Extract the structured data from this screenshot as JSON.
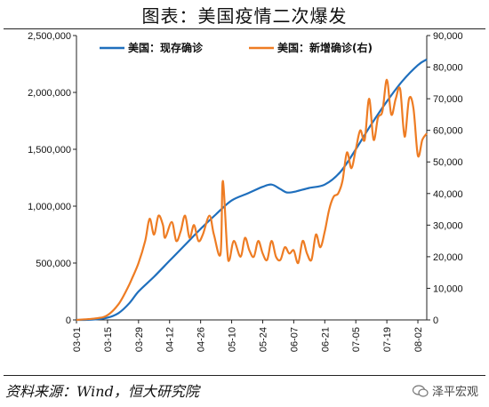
{
  "title": "图表：美国疫情二次爆发",
  "source": "资料来源：Wind，恒大研究院",
  "watermark": "泽平宏观",
  "colors": {
    "confirmed": "#1f6fbd",
    "new_cases": "#ee7c23"
  },
  "chart_data": {
    "type": "line",
    "x_ticks": [
      "03-01",
      "03-15",
      "03-29",
      "04-12",
      "04-26",
      "05-10",
      "05-24",
      "06-07",
      "06-21",
      "07-05",
      "07-19",
      "08-02"
    ],
    "x_start_label": "03-01",
    "series": [
      {
        "name": "美国：现存确诊",
        "axis": "left",
        "x": [
          "03-01",
          "03-08",
          "03-15",
          "03-20",
          "03-25",
          "03-29",
          "04-05",
          "04-12",
          "04-19",
          "04-26",
          "05-03",
          "05-10",
          "05-17",
          "05-24",
          "05-28",
          "06-01",
          "06-04",
          "06-08",
          "06-14",
          "06-21",
          "06-28",
          "07-05",
          "07-12",
          "07-19",
          "07-26",
          "08-02",
          "08-06"
        ],
        "values": [
          0,
          2000,
          20000,
          60000,
          150000,
          250000,
          380000,
          520000,
          660000,
          800000,
          930000,
          1050000,
          1110000,
          1170000,
          1190000,
          1150000,
          1120000,
          1130000,
          1160000,
          1190000,
          1300000,
          1500000,
          1720000,
          1920000,
          2100000,
          2240000,
          2290000
        ]
      },
      {
        "name": "美国：新增确诊(右)",
        "axis": "right",
        "x": [
          "03-01",
          "03-10",
          "03-15",
          "03-20",
          "03-24",
          "03-26",
          "03-29",
          "04-01",
          "04-03",
          "04-05",
          "04-07",
          "04-09",
          "04-10",
          "04-13",
          "04-15",
          "04-17",
          "04-19",
          "04-21",
          "04-23",
          "04-25",
          "04-27",
          "04-30",
          "05-02",
          "05-05",
          "05-06",
          "05-08",
          "05-09",
          "05-11",
          "05-14",
          "05-16",
          "05-18",
          "05-20",
          "05-22",
          "05-24",
          "05-26",
          "05-28",
          "05-30",
          "06-01",
          "06-03",
          "06-05",
          "06-07",
          "06-09",
          "06-11",
          "06-13",
          "06-15",
          "06-17",
          "06-19",
          "06-21",
          "06-23",
          "06-25",
          "06-27",
          "06-29",
          "07-01",
          "07-03",
          "07-05",
          "07-07",
          "07-09",
          "07-11",
          "07-13",
          "07-15",
          "07-17",
          "07-19",
          "07-21",
          "07-23",
          "07-25",
          "07-27",
          "07-29",
          "07-31",
          "08-02",
          "08-04",
          "08-06"
        ],
        "values": [
          0,
          500,
          1500,
          5000,
          10000,
          13000,
          18000,
          25000,
          32000,
          27000,
          33000,
          30000,
          26000,
          31000,
          25000,
          28000,
          33000,
          26000,
          30000,
          25000,
          27000,
          33000,
          27000,
          21000,
          44000,
          22000,
          19000,
          25000,
          20000,
          26000,
          22000,
          20000,
          25000,
          21000,
          19000,
          25000,
          20000,
          19000,
          23000,
          21000,
          22000,
          18000,
          25000,
          21000,
          19000,
          27000,
          23000,
          28000,
          35000,
          39000,
          40000,
          44000,
          53000,
          48000,
          54000,
          60000,
          57000,
          70000,
          57000,
          64000,
          66000,
          76000,
          65000,
          70000,
          73000,
          58000,
          70000,
          67000,
          52000,
          57000,
          59000
        ]
      }
    ],
    "ylim_left": [
      0,
      2500000
    ],
    "ylim_right": [
      0,
      90000
    ],
    "left_ticks": [
      0,
      500000,
      1000000,
      1500000,
      2000000,
      2500000
    ],
    "left_tick_labels": [
      "0",
      "500,000",
      "1,000,000",
      "1,500,000",
      "2,000,000",
      "2,500,000"
    ],
    "right_ticks": [
      0,
      10000,
      20000,
      30000,
      40000,
      50000,
      60000,
      70000,
      80000,
      90000
    ],
    "right_tick_labels": [
      "0",
      "10,000",
      "20,000",
      "30,000",
      "40,000",
      "50,000",
      "60,000",
      "70,000",
      "80,000",
      "90,000"
    ],
    "legend_position": "top",
    "grid": false
  }
}
